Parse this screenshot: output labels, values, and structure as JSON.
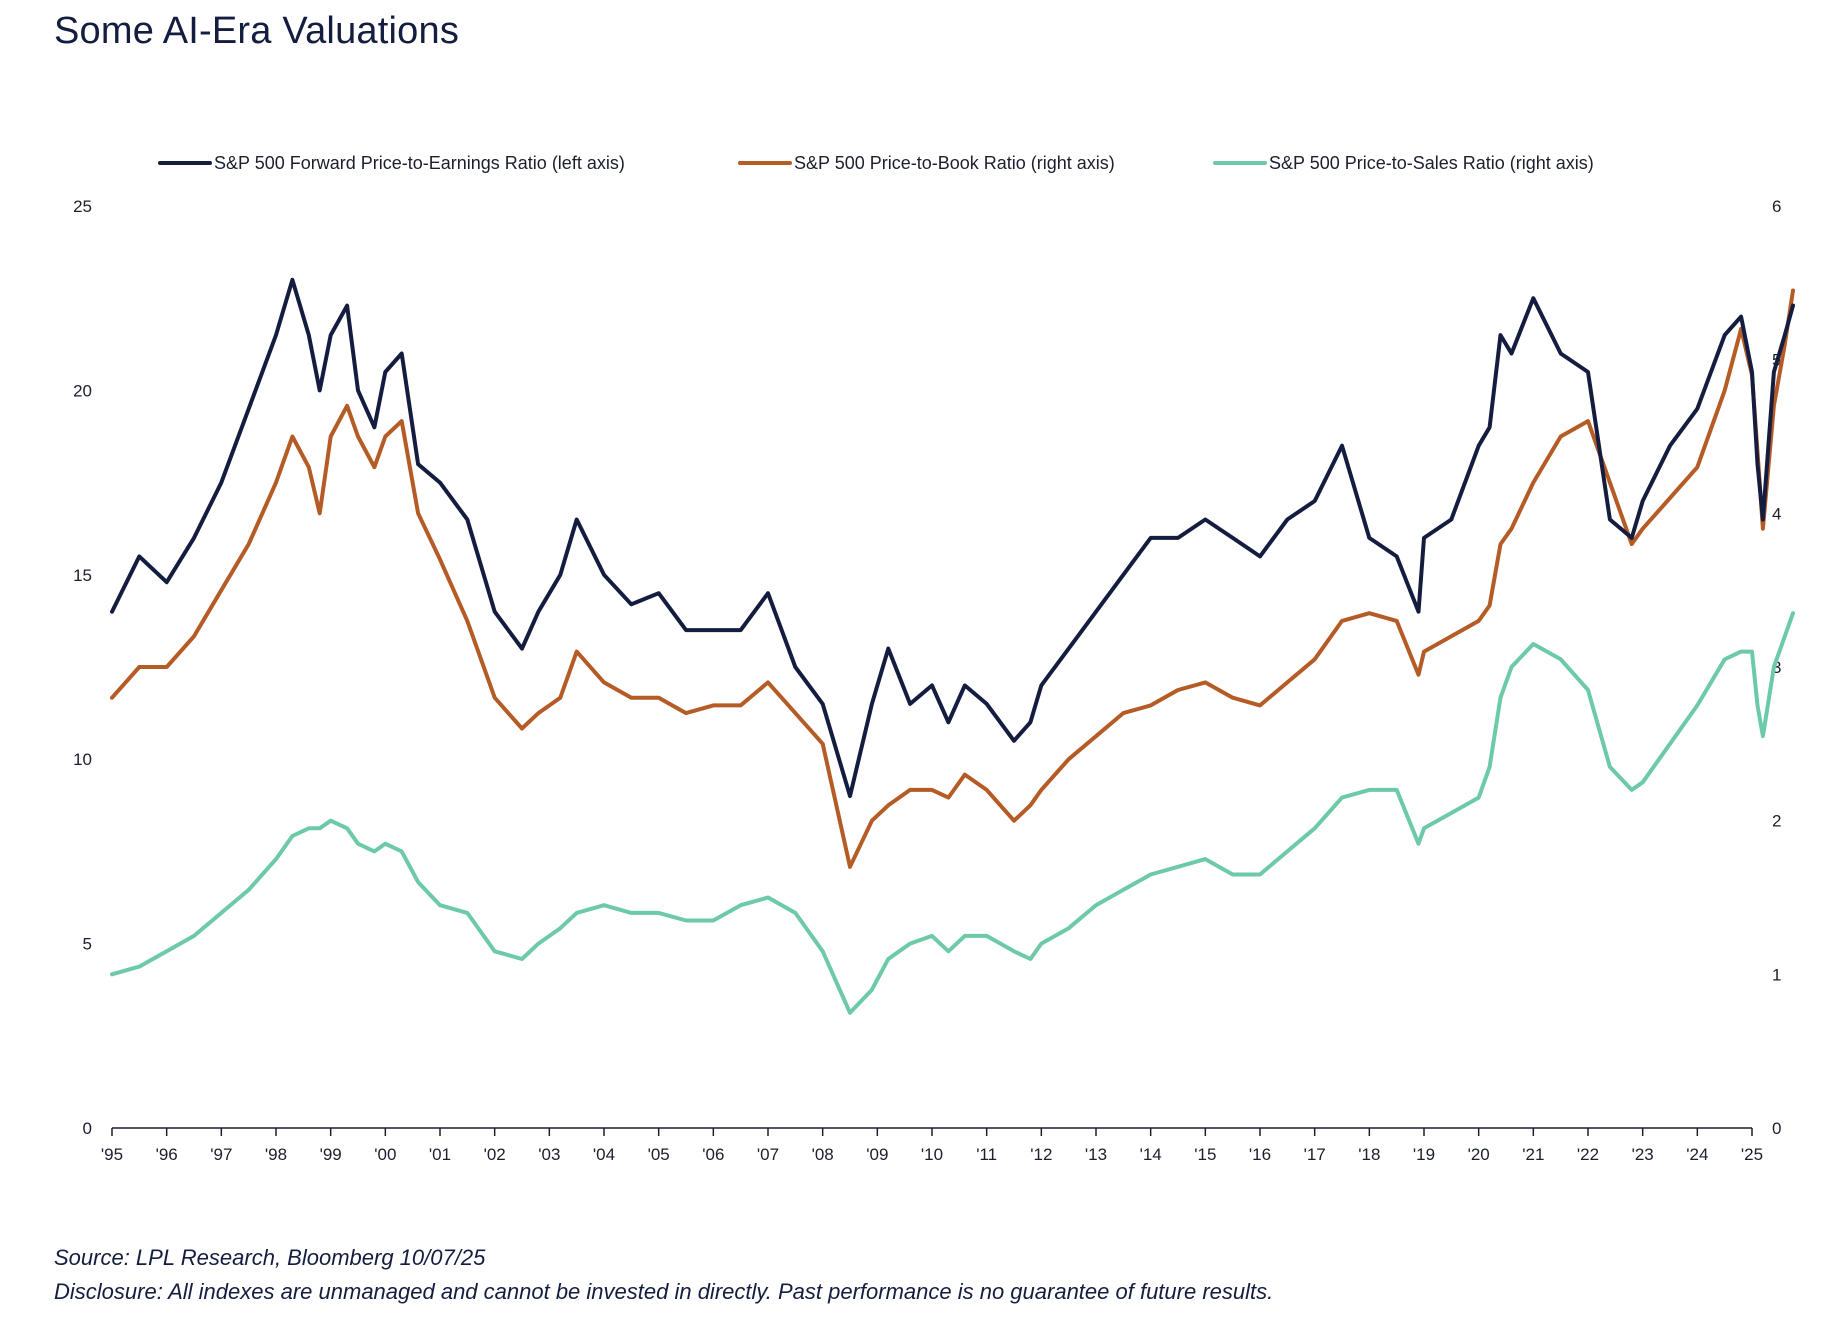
{
  "title": "Some AI-Era Valuations",
  "source": "Source: LPL Research, Bloomberg 10/07/25",
  "disclosure": "Disclosure: All indexes are unmanaged and cannot be invested in directly. Past performance is no guarantee of future results.",
  "chart_data": {
    "type": "line",
    "title": "Some AI-Era Valuations",
    "legend_position": "top",
    "grid": false,
    "x_ticks": [
      "'95",
      "'96",
      "'97",
      "'98",
      "'99",
      "'00",
      "'01",
      "'02",
      "'03",
      "'04",
      "'05",
      "'06",
      "'07",
      "'08",
      "'09",
      "'10",
      "'11",
      "'12",
      "'13",
      "'14",
      "'15",
      "'16",
      "'17",
      "'18",
      "'19",
      "'20",
      "'21",
      "'22",
      "'23",
      "'24",
      "'25"
    ],
    "x_range": [
      1995.0,
      2025.0
    ],
    "y_left": {
      "min": 0,
      "max": 25,
      "ticks": [
        "0",
        "5",
        "10",
        "15",
        "20",
        "25"
      ]
    },
    "y_right": {
      "min": 0,
      "max": 6,
      "ticks": [
        "0",
        "1",
        "2",
        "3",
        "4",
        "5",
        "6"
      ]
    },
    "series": [
      {
        "name": "S&P 500 Forward Price-to-Earnings Ratio (left axis)",
        "axis": "left",
        "color": "#141d3f",
        "x": [
          1995.0,
          1995.5,
          1996.0,
          1996.5,
          1997.0,
          1997.5,
          1998.0,
          1998.3,
          1998.6,
          1998.8,
          1999.0,
          1999.3,
          1999.5,
          1999.8,
          2000.0,
          2000.3,
          2000.6,
          2001.0,
          2001.5,
          2002.0,
          2002.5,
          2002.8,
          2003.2,
          2003.5,
          2004.0,
          2004.5,
          2005.0,
          2005.5,
          2006.0,
          2006.5,
          2007.0,
          2007.5,
          2008.0,
          2008.5,
          2008.9,
          2009.2,
          2009.6,
          2010.0,
          2010.3,
          2010.6,
          2011.0,
          2011.5,
          2011.8,
          2012.0,
          2012.5,
          2013.0,
          2013.5,
          2014.0,
          2014.5,
          2015.0,
          2015.5,
          2016.0,
          2016.5,
          2017.0,
          2017.5,
          2018.0,
          2018.5,
          2018.9,
          2019.0,
          2019.5,
          2020.0,
          2020.2,
          2020.4,
          2020.6,
          2021.0,
          2021.5,
          2022.0,
          2022.4,
          2022.8,
          2023.0,
          2023.5,
          2024.0,
          2024.5,
          2024.8,
          2025.0,
          2025.1,
          2025.2,
          2025.4,
          2025.6,
          2025.75
        ],
        "y": [
          14.0,
          15.5,
          14.8,
          16.0,
          17.5,
          19.5,
          21.5,
          23.0,
          21.5,
          20.0,
          21.5,
          22.3,
          20.0,
          19.0,
          20.5,
          21.0,
          18.0,
          17.5,
          16.5,
          14.0,
          13.0,
          14.0,
          15.0,
          16.5,
          15.0,
          14.2,
          14.5,
          13.5,
          13.5,
          13.5,
          14.5,
          12.5,
          11.5,
          9.0,
          11.5,
          13.0,
          11.5,
          12.0,
          11.0,
          12.0,
          11.5,
          10.5,
          11.0,
          12.0,
          13.0,
          14.0,
          15.0,
          16.0,
          16.0,
          16.5,
          16.0,
          15.5,
          16.5,
          17.0,
          18.5,
          16.0,
          15.5,
          14.0,
          16.0,
          16.5,
          18.5,
          19.0,
          21.5,
          21.0,
          22.5,
          21.0,
          20.5,
          16.5,
          16.0,
          17.0,
          18.5,
          19.5,
          21.5,
          22.0,
          20.5,
          18.0,
          16.5,
          20.5,
          21.5,
          22.3
        ]
      },
      {
        "name": "S&P 500 Price-to-Book Ratio (right axis)",
        "axis": "right",
        "color": "#b55b26",
        "x": [
          1995.0,
          1995.5,
          1996.0,
          1996.5,
          1997.0,
          1997.5,
          1998.0,
          1998.3,
          1998.6,
          1998.8,
          1999.0,
          1999.3,
          1999.5,
          1999.8,
          2000.0,
          2000.3,
          2000.6,
          2001.0,
          2001.5,
          2002.0,
          2002.5,
          2002.8,
          2003.2,
          2003.5,
          2004.0,
          2004.5,
          2005.0,
          2005.5,
          2006.0,
          2006.5,
          2007.0,
          2007.5,
          2008.0,
          2008.5,
          2008.9,
          2009.2,
          2009.6,
          2010.0,
          2010.3,
          2010.6,
          2011.0,
          2011.5,
          2011.8,
          2012.0,
          2012.5,
          2013.0,
          2013.5,
          2014.0,
          2014.5,
          2015.0,
          2015.5,
          2016.0,
          2016.5,
          2017.0,
          2017.5,
          2018.0,
          2018.5,
          2018.9,
          2019.0,
          2019.5,
          2020.0,
          2020.2,
          2020.4,
          2020.6,
          2021.0,
          2021.5,
          2022.0,
          2022.4,
          2022.8,
          2023.0,
          2023.5,
          2024.0,
          2024.5,
          2024.8,
          2025.0,
          2025.1,
          2025.2,
          2025.4,
          2025.6,
          2025.75
        ],
        "y": [
          2.8,
          3.0,
          3.0,
          3.2,
          3.5,
          3.8,
          4.2,
          4.5,
          4.3,
          4.0,
          4.5,
          4.7,
          4.5,
          4.3,
          4.5,
          4.6,
          4.0,
          3.7,
          3.3,
          2.8,
          2.6,
          2.7,
          2.8,
          3.1,
          2.9,
          2.8,
          2.8,
          2.7,
          2.75,
          2.75,
          2.9,
          2.7,
          2.5,
          1.7,
          2.0,
          2.1,
          2.2,
          2.2,
          2.15,
          2.3,
          2.2,
          2.0,
          2.1,
          2.2,
          2.4,
          2.55,
          2.7,
          2.75,
          2.85,
          2.9,
          2.8,
          2.75,
          2.9,
          3.05,
          3.3,
          3.35,
          3.3,
          2.95,
          3.1,
          3.2,
          3.3,
          3.4,
          3.8,
          3.9,
          4.2,
          4.5,
          4.6,
          4.2,
          3.8,
          3.9,
          4.1,
          4.3,
          4.8,
          5.2,
          4.9,
          4.4,
          3.9,
          4.7,
          5.1,
          5.45
        ]
      },
      {
        "name": "S&P 500 Price-to-Sales Ratio (right axis)",
        "axis": "right",
        "color": "#6ccaa7",
        "x": [
          1995.0,
          1995.5,
          1996.0,
          1996.5,
          1997.0,
          1997.5,
          1998.0,
          1998.3,
          1998.6,
          1998.8,
          1999.0,
          1999.3,
          1999.5,
          1999.8,
          2000.0,
          2000.3,
          2000.6,
          2001.0,
          2001.5,
          2002.0,
          2002.5,
          2002.8,
          2003.2,
          2003.5,
          2004.0,
          2004.5,
          2005.0,
          2005.5,
          2006.0,
          2006.5,
          2007.0,
          2007.5,
          2008.0,
          2008.5,
          2008.9,
          2009.2,
          2009.6,
          2010.0,
          2010.3,
          2010.6,
          2011.0,
          2011.5,
          2011.8,
          2012.0,
          2012.5,
          2013.0,
          2013.5,
          2014.0,
          2014.5,
          2015.0,
          2015.5,
          2016.0,
          2016.5,
          2017.0,
          2017.5,
          2018.0,
          2018.5,
          2018.9,
          2019.0,
          2019.5,
          2020.0,
          2020.2,
          2020.4,
          2020.6,
          2021.0,
          2021.5,
          2022.0,
          2022.4,
          2022.8,
          2023.0,
          2023.5,
          2024.0,
          2024.5,
          2024.8,
          2025.0,
          2025.1,
          2025.2,
          2025.4,
          2025.6,
          2025.75
        ],
        "y": [
          1.0,
          1.05,
          1.15,
          1.25,
          1.4,
          1.55,
          1.75,
          1.9,
          1.95,
          1.95,
          2.0,
          1.95,
          1.85,
          1.8,
          1.85,
          1.8,
          1.6,
          1.45,
          1.4,
          1.15,
          1.1,
          1.2,
          1.3,
          1.4,
          1.45,
          1.4,
          1.4,
          1.35,
          1.35,
          1.45,
          1.5,
          1.4,
          1.15,
          0.75,
          0.9,
          1.1,
          1.2,
          1.25,
          1.15,
          1.25,
          1.25,
          1.15,
          1.1,
          1.2,
          1.3,
          1.45,
          1.55,
          1.65,
          1.7,
          1.75,
          1.65,
          1.65,
          1.8,
          1.95,
          2.15,
          2.2,
          2.2,
          1.85,
          1.95,
          2.05,
          2.15,
          2.35,
          2.8,
          3.0,
          3.15,
          3.05,
          2.85,
          2.35,
          2.2,
          2.25,
          2.5,
          2.75,
          3.05,
          3.1,
          3.1,
          2.75,
          2.55,
          3.0,
          3.2,
          3.35
        ]
      }
    ]
  }
}
